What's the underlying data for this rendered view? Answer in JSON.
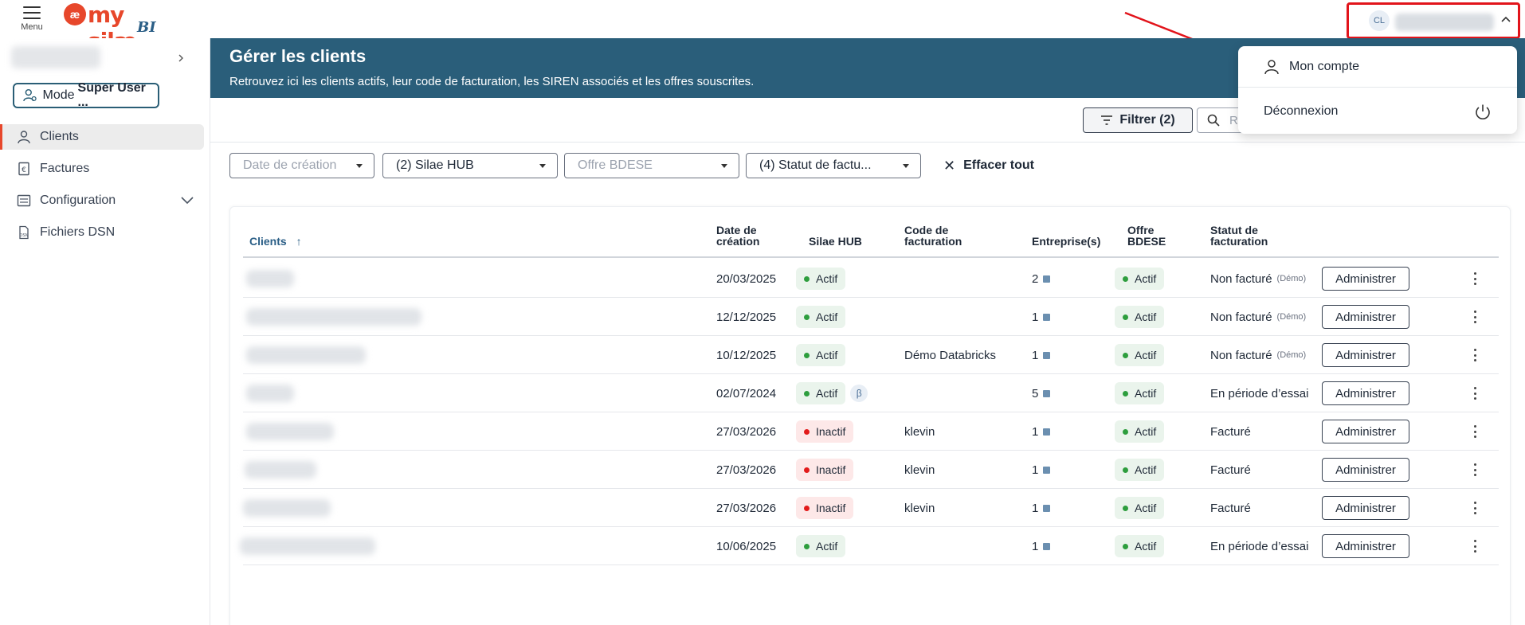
{
  "topbar": {
    "menu_label": "Menu",
    "logo_mark": "æ",
    "logo_text": "my silæ",
    "logo_suffix": "BI",
    "user_initials": "CL"
  },
  "sidebar": {
    "mode_prefix": "Mode",
    "mode_label": "Super User ...",
    "items": [
      {
        "label": "Clients",
        "icon": "user-icon",
        "active": true
      },
      {
        "label": "Factures",
        "icon": "invoice-icon"
      },
      {
        "label": "Configuration",
        "icon": "config-icon",
        "expandable": true
      },
      {
        "label": "Fichiers DSN",
        "icon": "dsn-file-icon"
      }
    ]
  },
  "banner": {
    "title": "Gérer les clients",
    "subtitle": "Retrouvez ici les clients actifs, leur code de facturation, les SIREN associés et les offres souscrites."
  },
  "toolbar": {
    "filter_label": "Filtrer (2)",
    "search_placeholder": "R"
  },
  "filters": [
    {
      "label": "Date de création",
      "state": "placeholder"
    },
    {
      "label": "(2) Silae HUB",
      "state": "selected"
    },
    {
      "label": "Offre BDESE",
      "state": "placeholder"
    },
    {
      "label": "(4) Statut de factu...",
      "state": "selected"
    }
  ],
  "clear_all_label": "Effacer tout",
  "table": {
    "headers": {
      "clients": "Clients",
      "date_1": "Date de",
      "date_2": "création",
      "hub": "Silae HUB",
      "code_1": "Code de",
      "code_2": "facturation",
      "ent": "Entreprise(s)",
      "offre_1": "Offre",
      "offre_2": "BDESE",
      "statut_1": "Statut de",
      "statut_2": "facturation"
    },
    "admin_label": "Administrer",
    "rows": [
      {
        "date": "20/03/2025",
        "hub": "Actif",
        "beta": false,
        "code": "",
        "ent": "2",
        "offre": "Actif",
        "statut": "Non facturé",
        "demo": "(Démo)"
      },
      {
        "date": "12/12/2025",
        "hub": "Actif",
        "beta": false,
        "code": "",
        "ent": "1",
        "offre": "Actif",
        "statut": "Non facturé",
        "demo": "(Démo)"
      },
      {
        "date": "10/12/2025",
        "hub": "Actif",
        "beta": false,
        "code": "Démo Databricks",
        "ent": "1",
        "offre": "Actif",
        "statut": "Non facturé",
        "demo": "(Démo)"
      },
      {
        "date": "02/07/2024",
        "hub": "Actif",
        "beta": true,
        "beta_label": "β",
        "code": "",
        "ent": "5",
        "offre": "Actif",
        "statut": "En période d’essai",
        "demo": ""
      },
      {
        "date": "27/03/2026",
        "hub": "Inactif",
        "beta": false,
        "code": "klevin",
        "ent": "1",
        "offre": "Actif",
        "statut": "Facturé",
        "demo": ""
      },
      {
        "date": "27/03/2026",
        "hub": "Inactif",
        "beta": false,
        "code": "klevin",
        "ent": "1",
        "offre": "Actif",
        "statut": "Facturé",
        "demo": ""
      },
      {
        "date": "27/03/2026",
        "hub": "Inactif",
        "beta": false,
        "code": "klevin",
        "ent": "1",
        "offre": "Actif",
        "statut": "Facturé",
        "demo": ""
      },
      {
        "date": "10/06/2025",
        "hub": "Actif",
        "beta": false,
        "code": "",
        "ent": "1",
        "offre": "Actif",
        "statut": "En période d’essai",
        "demo": ""
      }
    ]
  },
  "user_menu": {
    "account_label": "Mon compte",
    "logout_label": "Déconnexion"
  },
  "colors": {
    "brand": "#e7472b",
    "banner": "#2a5e7a",
    "active_green": "#2e9e3e",
    "inactive_red": "#e21b1b",
    "annotation_red": "#e2141b"
  }
}
